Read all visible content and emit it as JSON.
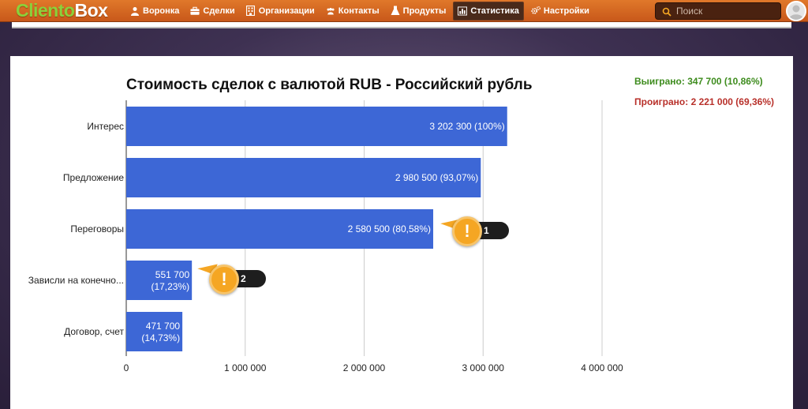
{
  "app": {
    "logo_part1": "Cliento",
    "logo_part2": "Box"
  },
  "nav": [
    {
      "label": "Воронка",
      "icon": "people-icon"
    },
    {
      "label": "Сделки",
      "icon": "briefcase-icon"
    },
    {
      "label": "Организации",
      "icon": "building-icon"
    },
    {
      "label": "Контакты",
      "icon": "contacts-icon"
    },
    {
      "label": "Продукты",
      "icon": "flask-icon"
    },
    {
      "label": "Статистика",
      "icon": "bar-chart-icon",
      "active": true
    },
    {
      "label": "Настройки",
      "icon": "gears-icon"
    }
  ],
  "search": {
    "placeholder": "Поиск"
  },
  "summary": {
    "won": "Выиграно: 347 700 (10,86%)",
    "lost": "Проиграно: 2 221 000 (69,36%)",
    "won_color": "#3e8c1e",
    "lost_color": "#b8302a"
  },
  "callouts": [
    {
      "label": "1",
      "icon": "exclamation-icon"
    },
    {
      "label": "2",
      "icon": "exclamation-icon"
    }
  ],
  "chart_data": {
    "type": "bar",
    "orientation": "horizontal",
    "title": "Стоимость сделок с валютой RUB - Российский рубль",
    "categories": [
      "Интерес",
      "Предложение",
      "Переговоры",
      "Зависли на конечно...",
      "Договор, счет"
    ],
    "values": [
      3202300,
      2980500,
      2580500,
      551700,
      471700
    ],
    "data_labels": [
      "3 202 300 (100%)",
      "2 980 500 (93,07%)",
      "2 580 500 (80,58%)",
      "551 700 (17,23%)",
      "471 700 (14,73%)"
    ],
    "x_ticks": [
      0,
      1000000,
      2000000,
      3000000,
      4000000
    ],
    "x_tick_labels": [
      "0",
      "1 000 000",
      "2 000 000",
      "3 000 000",
      "4 000 000"
    ],
    "xlim": [
      0,
      4000000
    ],
    "grid": true,
    "bar_color": "#3d67d6"
  }
}
